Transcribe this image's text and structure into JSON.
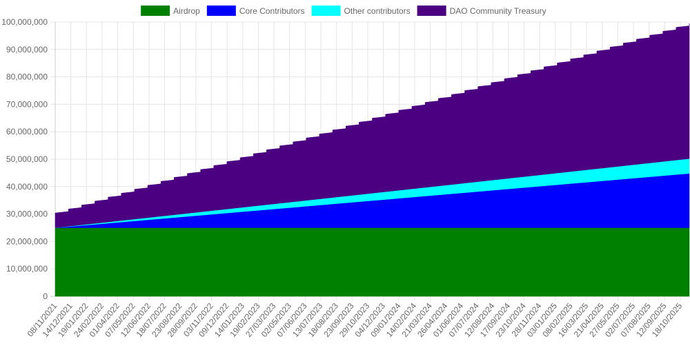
{
  "chart_data": {
    "type": "area",
    "stacked": true,
    "title": "",
    "xlabel": "",
    "ylabel": "",
    "ylim": [
      0,
      100000000
    ],
    "y_ticks": [
      "0",
      "10,000,000",
      "20,000,000",
      "30,000,000",
      "40,000,000",
      "50,000,000",
      "60,000,000",
      "70,000,000",
      "80,000,000",
      "90,000,000",
      "100,000,000"
    ],
    "x_tick_labels": [
      "08/11/2021",
      "14/12/2021",
      "19/01/2022",
      "24/02/2022",
      "01/04/2022",
      "07/05/2022",
      "12/06/2022",
      "18/07/2022",
      "23/08/2022",
      "28/09/2022",
      "03/11/2022",
      "09/12/2022",
      "14/01/2023",
      "19/02/2023",
      "27/03/2023",
      "02/05/2023",
      "07/06/2023",
      "13/07/2023",
      "18/08/2023",
      "23/09/2023",
      "29/10/2023",
      "04/12/2023",
      "09/01/2024",
      "14/02/2024",
      "21/03/2024",
      "26/04/2024",
      "01/06/2024",
      "07/07/2024",
      "12/08/2024",
      "17/09/2024",
      "23/10/2024",
      "28/11/2024",
      "03/01/2025",
      "08/02/2025",
      "16/03/2025",
      "21/04/2025",
      "27/05/2025",
      "02/07/2025",
      "07/08/2025",
      "12/09/2025",
      "18/10/2025"
    ],
    "x_points_note": "monthly samples",
    "grid": true,
    "legend_position": "top",
    "series": [
      {
        "name": "Airdrop",
        "color": "#008000",
        "values": [
          25000000,
          25000000,
          25000000,
          25000000,
          25000000,
          25000000,
          25000000,
          25000000,
          25000000,
          25000000,
          25000000,
          25000000,
          25000000,
          25000000,
          25000000,
          25000000,
          25000000,
          25000000,
          25000000,
          25000000,
          25000000,
          25000000,
          25000000,
          25000000,
          25000000,
          25000000,
          25000000,
          25000000,
          25000000,
          25000000,
          25000000,
          25000000,
          25000000,
          25000000,
          25000000,
          25000000,
          25000000,
          25000000,
          25000000,
          25000000,
          25000000,
          25000000,
          25000000,
          25000000,
          25000000,
          25000000,
          25000000,
          25000000,
          25000000
        ]
      },
      {
        "name": "Core Contributors",
        "color": "#0000ff",
        "values": [
          0,
          412500,
          825000,
          1237500,
          1650000,
          2062500,
          2475000,
          2887500,
          3300000,
          3712500,
          4125000,
          4537500,
          4950000,
          5362500,
          5775000,
          6187500,
          6600000,
          7012500,
          7425000,
          7837500,
          8250000,
          8662500,
          9075000,
          9487500,
          9900000,
          10312500,
          10725000,
          11137500,
          11550000,
          11962500,
          12375000,
          12787500,
          13200000,
          13612500,
          14025000,
          14437500,
          14850000,
          15262500,
          15675000,
          16087500,
          16500000,
          16912500,
          17325000,
          17737500,
          18150000,
          18562500,
          18975000,
          19387500,
          19800000
        ]
      },
      {
        "name": "Other contributors",
        "color": "#00ffff",
        "values": [
          0,
          112500,
          225000,
          337500,
          450000,
          562500,
          675000,
          787500,
          900000,
          1012500,
          1125000,
          1237500,
          1350000,
          1462500,
          1575000,
          1687500,
          1800000,
          1912500,
          2025000,
          2137500,
          2250000,
          2362500,
          2475000,
          2587500,
          2700000,
          2812500,
          2925000,
          3037500,
          3150000,
          3262500,
          3375000,
          3487500,
          3600000,
          3712500,
          3825000,
          3937500,
          4050000,
          4162500,
          4275000,
          4387500,
          4500000,
          4612500,
          4725000,
          4837500,
          4950000,
          5062500,
          5175000,
          5287500,
          5400000
        ]
      },
      {
        "name": "DAO Community Treasury",
        "color": "#4b0082",
        "stepped": true,
        "values": [
          5400000,
          6315000,
          7230000,
          8145000,
          9060000,
          9975000,
          10890000,
          11805000,
          12720000,
          13635000,
          14550000,
          15465000,
          16380000,
          17295000,
          18210000,
          19125000,
          20040000,
          20955000,
          21870000,
          22785000,
          23700000,
          24615000,
          25530000,
          26445000,
          27360000,
          28275000,
          29190000,
          30105000,
          31020000,
          31935000,
          32850000,
          33765000,
          34680000,
          35595000,
          36510000,
          37425000,
          38340000,
          39255000,
          40170000,
          41085000,
          42000000,
          42915000,
          43830000,
          44745000,
          45660000,
          46575000,
          47490000,
          48405000,
          49320000
        ]
      }
    ]
  }
}
